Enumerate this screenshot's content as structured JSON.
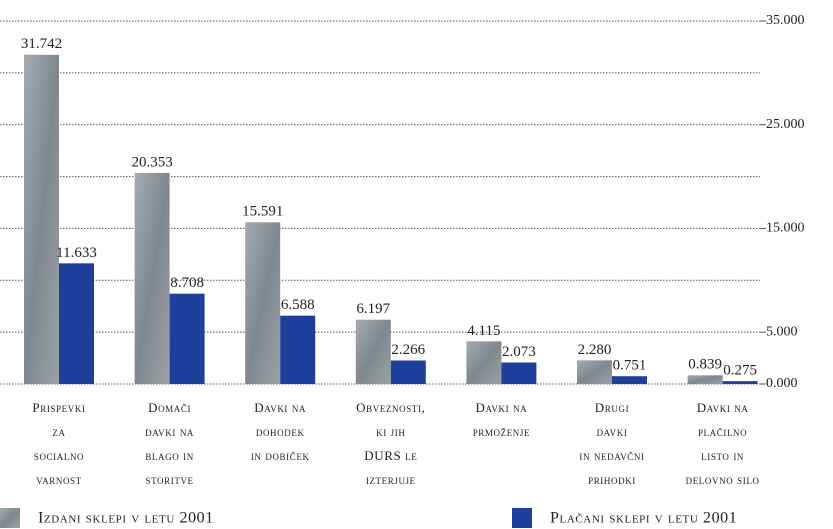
{
  "chart_data": {
    "type": "bar",
    "categories": [
      [
        "Prispevki",
        "za",
        "socialno",
        "varnost"
      ],
      [
        "Domači",
        "davki na",
        "blago in",
        "storitve"
      ],
      [
        "Davki na",
        "dohodek",
        "in dobiček"
      ],
      [
        "Obveznosti,",
        "ki jih",
        "DURS le",
        "izterjuje"
      ],
      [
        "Davki na",
        "prmoženje"
      ],
      [
        "Drugi",
        "davki",
        "in nedavčni",
        "prihodki"
      ],
      [
        "Davki na",
        "plačilno",
        "listo in",
        "delovno silo"
      ]
    ],
    "series": [
      {
        "name": "Izdani sklepi v letu 2001",
        "color": "#8e979c",
        "values": [
          31.742,
          20.353,
          15.591,
          6.197,
          4.115,
          2.28,
          0.839
        ],
        "value_labels": [
          "31.742",
          "20.353",
          "15.591",
          "6.197",
          "4.115",
          "2.280",
          "0.839"
        ]
      },
      {
        "name": "Plačani sklepi v letu 2001",
        "color": "#1f3f9c",
        "values": [
          11.633,
          8.708,
          6.588,
          2.266,
          2.073,
          0.751,
          0.275
        ],
        "value_labels": [
          "11.633",
          "8.708",
          "6.588",
          "2.266",
          "2.073",
          "0.751",
          "0.275"
        ]
      }
    ],
    "ylim": [
      0,
      35
    ],
    "yticks": [
      {
        "value": 0,
        "label": "0.000"
      },
      {
        "value": 5,
        "label": "5.000"
      },
      {
        "value": 15,
        "label": "15.000"
      },
      {
        "value": 25,
        "label": "25.000"
      },
      {
        "value": 35,
        "label": "35.000"
      }
    ],
    "minor_yticks": [
      10,
      20,
      30
    ],
    "grid": true,
    "legend": "bottom"
  }
}
